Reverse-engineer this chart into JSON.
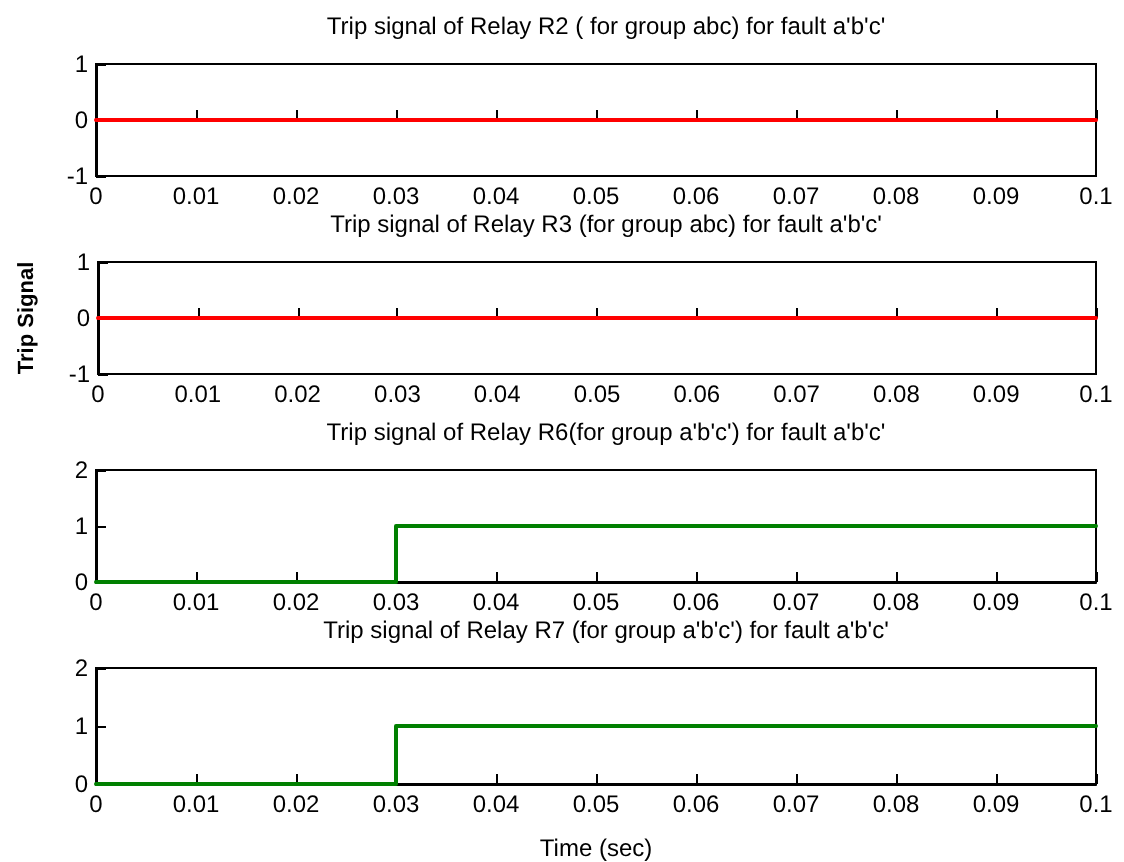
{
  "chart_data": [
    {
      "type": "line",
      "title": "Trip signal of Relay R2 ( for group abc) for fault a'b'c'",
      "x": [
        0,
        0.1
      ],
      "series": [
        {
          "color": "#ff0000",
          "values": [
            0,
            0
          ]
        }
      ],
      "xlim": [
        0,
        0.1
      ],
      "xticks": [
        0,
        0.01,
        0.02,
        0.03,
        0.04,
        0.05,
        0.06,
        0.07,
        0.08,
        0.09,
        0.1
      ],
      "ylim": [
        -1,
        1
      ],
      "yticks": [
        -1,
        0,
        1
      ],
      "grid": false,
      "marker": "none",
      "line_style": "solid"
    },
    {
      "type": "line",
      "title": "Trip signal of Relay R3 (for group abc) for fault a'b'c'",
      "ylabel": "Trip Signal",
      "x": [
        0,
        0.1
      ],
      "series": [
        {
          "color": "#ff0000",
          "values": [
            0,
            0
          ]
        }
      ],
      "xlim": [
        0,
        0.1
      ],
      "xticks": [
        0,
        0.01,
        0.02,
        0.03,
        0.04,
        0.05,
        0.06,
        0.07,
        0.08,
        0.09,
        0.1
      ],
      "ylim": [
        -1,
        1
      ],
      "yticks": [
        -1,
        0,
        1
      ],
      "grid": false,
      "marker": "none",
      "line_style": "solid"
    },
    {
      "type": "step",
      "title": "Trip signal of Relay R6(for group a'b'c') for fault a'b'c'",
      "x": [
        0,
        0.03,
        0.1
      ],
      "series": [
        {
          "color": "#008000",
          "values": [
            0,
            1,
            1
          ]
        }
      ],
      "xlim": [
        0,
        0.1
      ],
      "xticks": [
        0,
        0.01,
        0.02,
        0.03,
        0.04,
        0.05,
        0.06,
        0.07,
        0.08,
        0.09,
        0.1
      ],
      "ylim": [
        0,
        2
      ],
      "yticks": [
        0,
        1,
        2
      ],
      "grid": false,
      "marker": "none",
      "line_style": "solid"
    },
    {
      "type": "step",
      "title": "Trip signal of Relay R7 (for group a'b'c') for fault a'b'c'",
      "xlabel": "Time (sec)",
      "x": [
        0,
        0.03,
        0.1
      ],
      "series": [
        {
          "color": "#008000",
          "values": [
            0,
            1,
            1
          ]
        }
      ],
      "xlim": [
        0,
        0.1
      ],
      "xticks": [
        0,
        0.01,
        0.02,
        0.03,
        0.04,
        0.05,
        0.06,
        0.07,
        0.08,
        0.09,
        0.1
      ],
      "ylim": [
        0,
        2
      ],
      "yticks": [
        0,
        1,
        2
      ],
      "grid": false,
      "marker": "none",
      "line_style": "solid"
    }
  ]
}
